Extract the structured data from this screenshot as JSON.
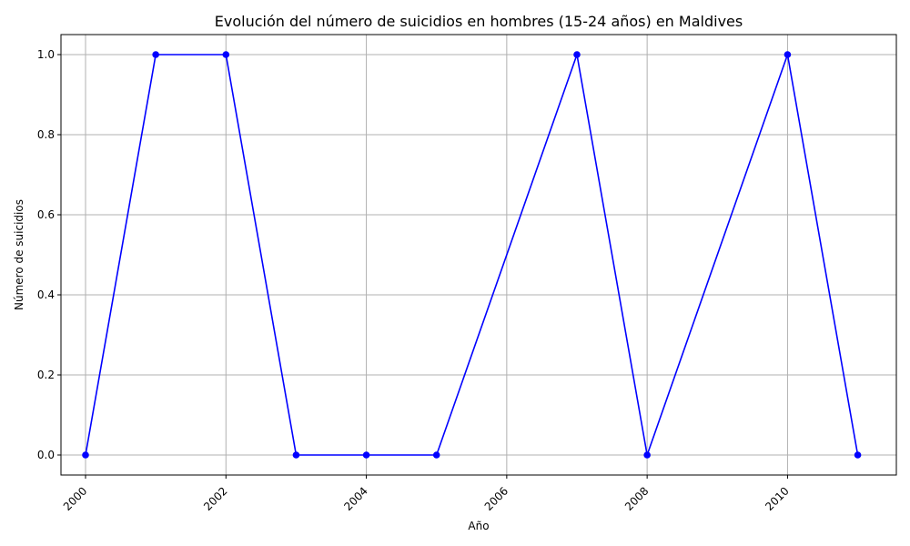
{
  "chart_data": {
    "type": "line",
    "title": "Evolución del número de suicidios en hombres (15-24 años) en Maldives",
    "xlabel": "Año",
    "ylabel": "Número de suicidios",
    "xlim": [
      1999.65,
      2011.55
    ],
    "ylim": [
      -0.05,
      1.05
    ],
    "x_ticks": [
      2000,
      2002,
      2004,
      2006,
      2008,
      2010
    ],
    "y_ticks": [
      "0.0",
      "0.2",
      "0.4",
      "0.6",
      "0.8",
      "1.0"
    ],
    "grid": true,
    "series": [
      {
        "color": "#0000ff",
        "marker": "circle",
        "x": [
          2000,
          2001,
          2002,
          2003,
          2004,
          2005,
          2007,
          2008,
          2010,
          2011
        ],
        "y": [
          0,
          1,
          1,
          0,
          0,
          0,
          1,
          0,
          1,
          0
        ]
      }
    ]
  }
}
